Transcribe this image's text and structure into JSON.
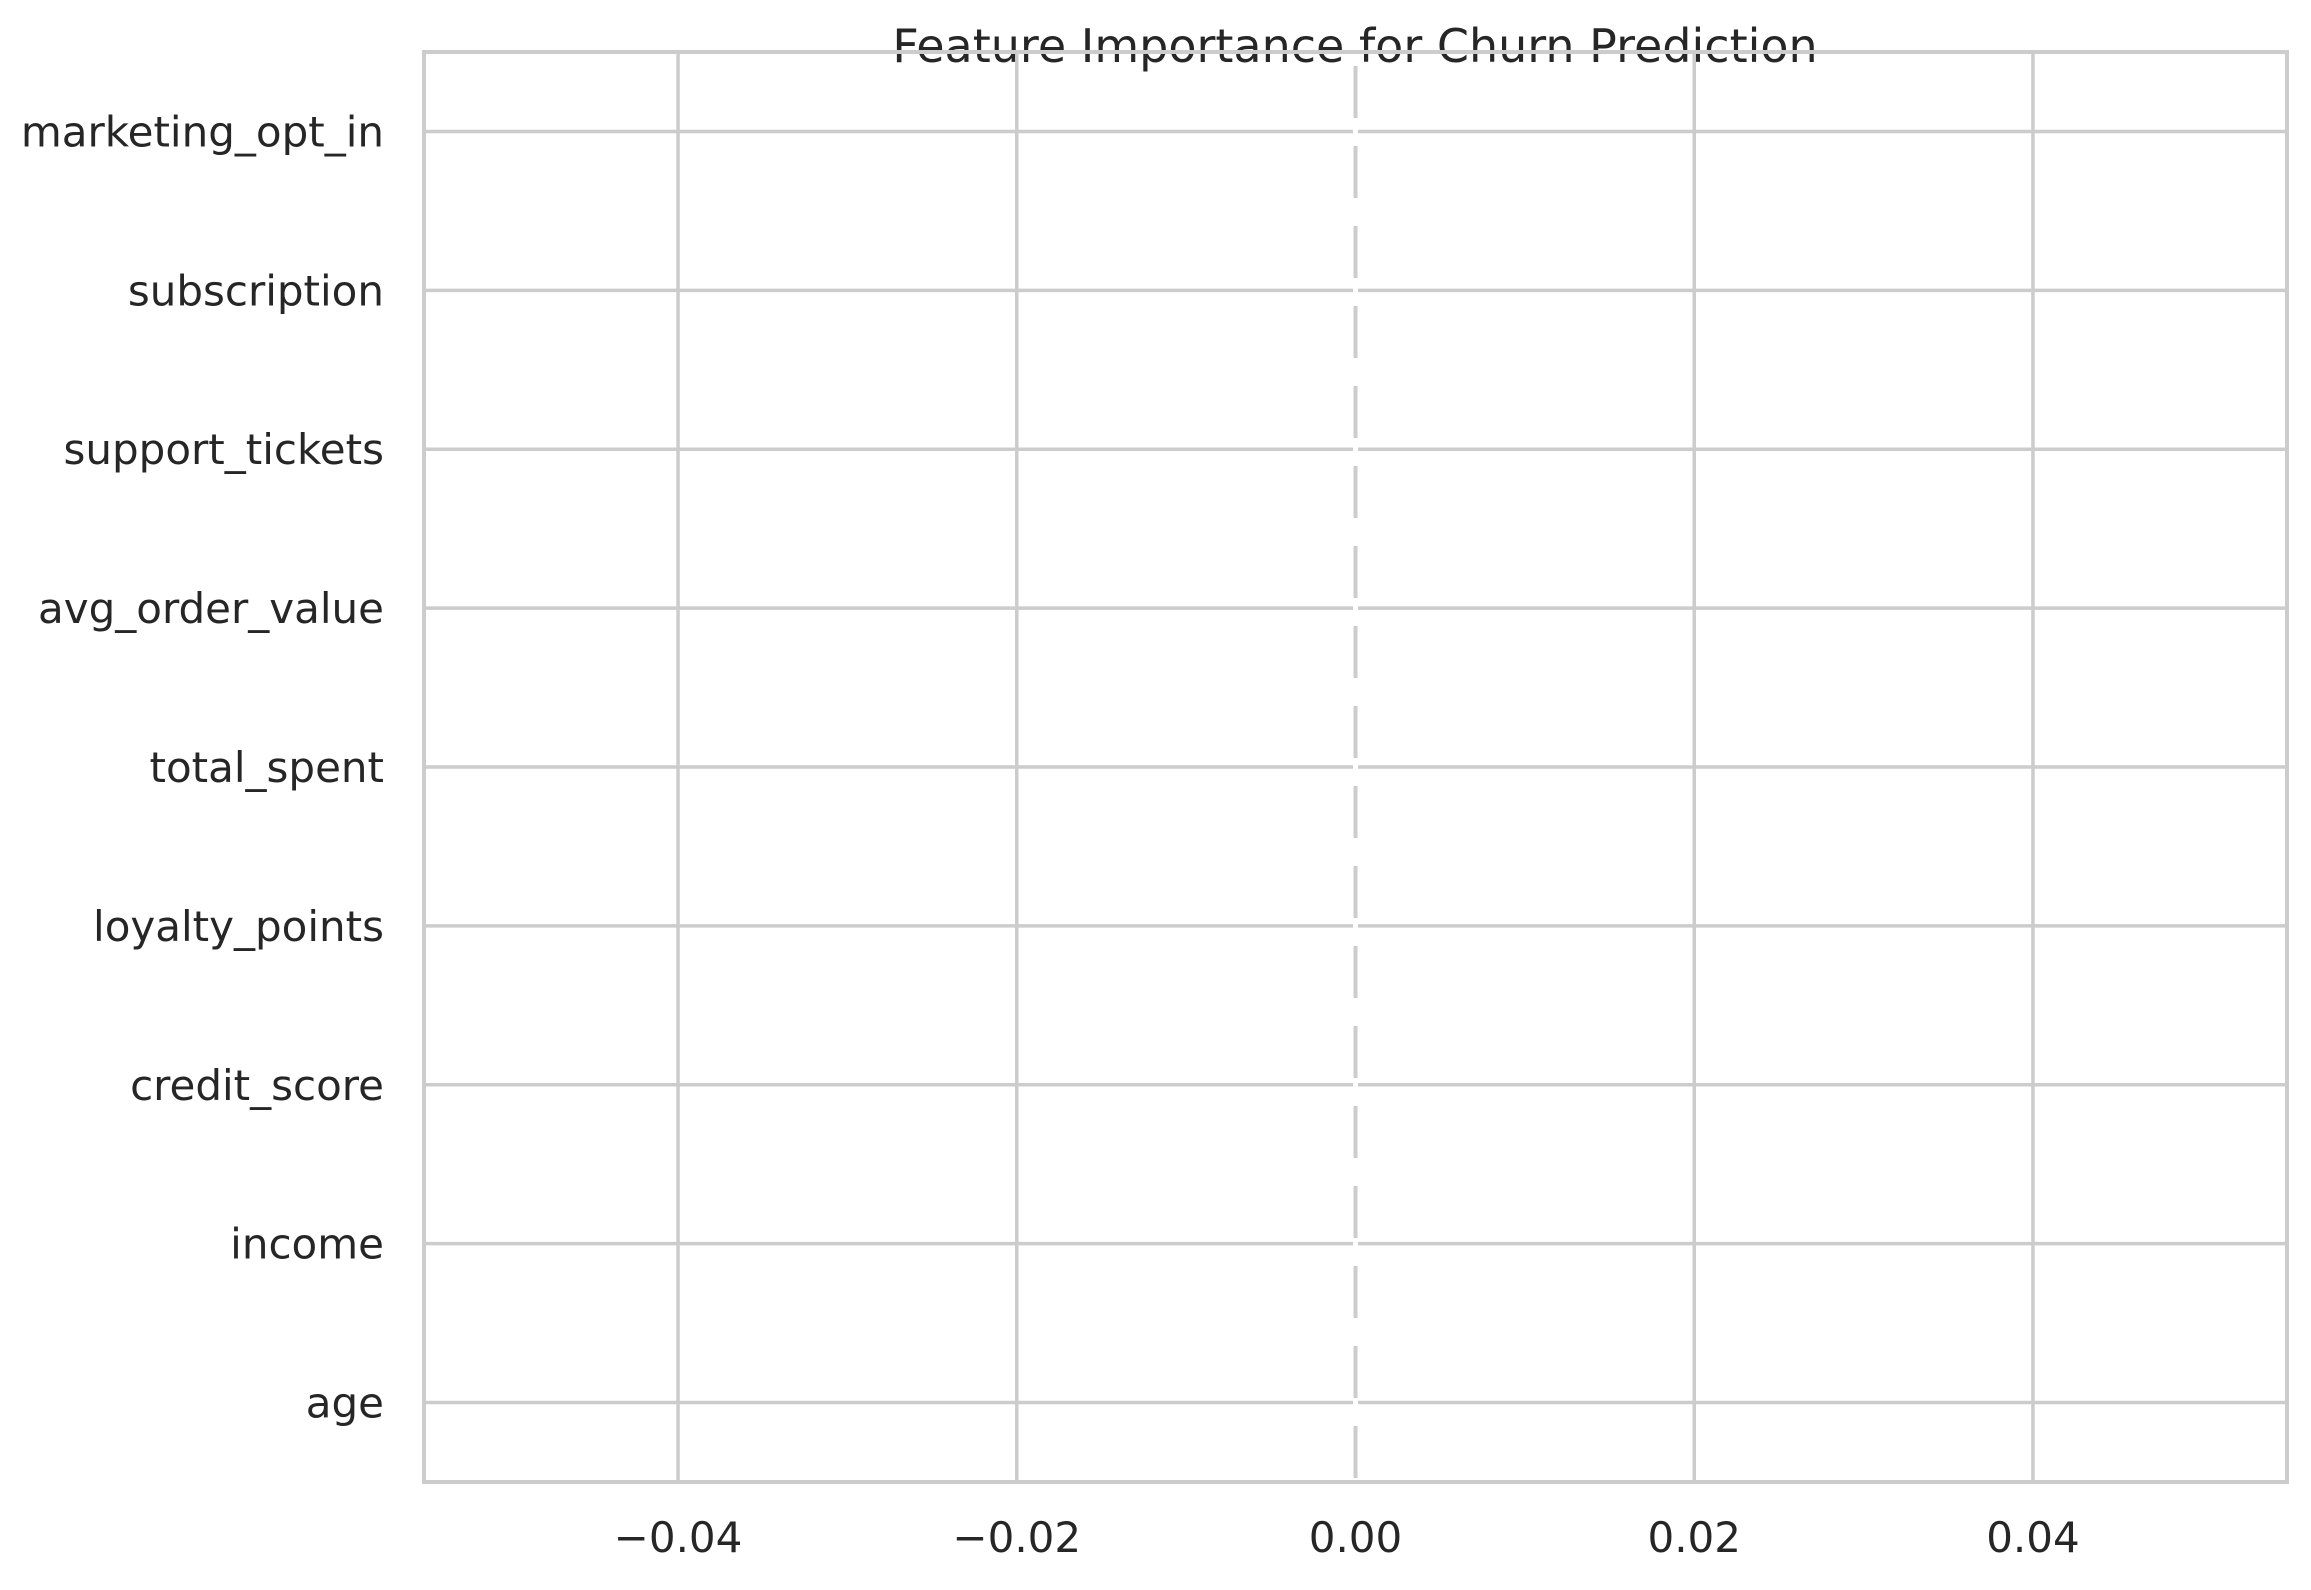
{
  "chart_data": {
    "type": "bar",
    "orientation": "horizontal",
    "title": "Feature Importance for Churn Prediction",
    "xlabel": "",
    "ylabel": "",
    "categories": [
      "age",
      "income",
      "credit_score",
      "loyalty_points",
      "total_spent",
      "avg_order_value",
      "support_tickets",
      "subscription",
      "marketing_opt_in"
    ],
    "values": [
      0,
      0,
      0,
      0,
      0,
      0,
      0,
      0,
      0
    ],
    "xlim": [
      -0.055,
      0.055
    ],
    "xticks": [
      -0.04,
      -0.02,
      0.0,
      0.02,
      0.04
    ],
    "xtick_labels": [
      "−0.04",
      "−0.02",
      "0.00",
      "0.02",
      "0.04"
    ],
    "reference_line": {
      "x": 0,
      "style": "dashed"
    },
    "grid": true,
    "colors": {
      "grid": "#cccccc",
      "text": "#262626",
      "background": "#ffffff",
      "bar": "#4c72b0"
    }
  }
}
